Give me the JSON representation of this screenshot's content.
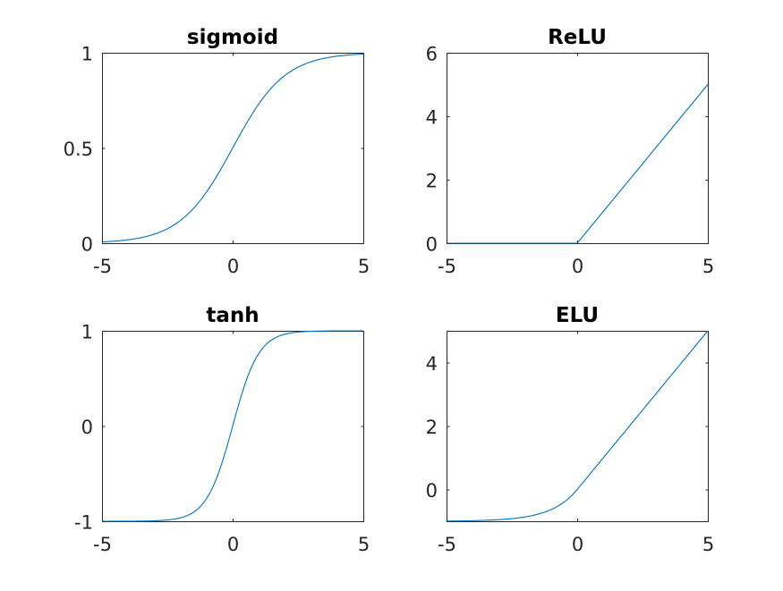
{
  "chart_data": [
    {
      "type": "line",
      "title": "sigmoid",
      "function": "sigmoid",
      "xlim": [
        -5,
        5
      ],
      "ylim": [
        0,
        1
      ],
      "xticks": [
        -5,
        0,
        5
      ],
      "xtick_labels": [
        "-5",
        "0",
        "5"
      ],
      "yticks": [
        0,
        0.5,
        1
      ],
      "ytick_labels": [
        "0",
        "0.5",
        "1"
      ],
      "x": [
        -5,
        -4,
        -3,
        -2,
        -1,
        0,
        1,
        2,
        3,
        4,
        5
      ],
      "y": [
        0.0067,
        0.018,
        0.047,
        0.119,
        0.269,
        0.5,
        0.731,
        0.881,
        0.953,
        0.982,
        0.9933
      ],
      "color": "#0072BD"
    },
    {
      "type": "line",
      "title": "ReLU",
      "function": "relu",
      "xlim": [
        -5,
        5
      ],
      "ylim": [
        0,
        6
      ],
      "xticks": [
        -5,
        0,
        5
      ],
      "xtick_labels": [
        "-5",
        "0",
        "5"
      ],
      "yticks": [
        0,
        2,
        4,
        6
      ],
      "ytick_labels": [
        "0",
        "2",
        "4",
        "6"
      ],
      "x": [
        -5,
        0,
        5
      ],
      "y": [
        0,
        0,
        5
      ],
      "color": "#0072BD"
    },
    {
      "type": "line",
      "title": "tanh",
      "function": "tanh",
      "xlim": [
        -5,
        5
      ],
      "ylim": [
        -1,
        1
      ],
      "xticks": [
        -5,
        0,
        5
      ],
      "xtick_labels": [
        "-5",
        "0",
        "5"
      ],
      "yticks": [
        -1,
        0,
        1
      ],
      "ytick_labels": [
        "-1",
        "0",
        "1"
      ],
      "x": [
        -5,
        -4,
        -3,
        -2,
        -1,
        0,
        1,
        2,
        3,
        4,
        5
      ],
      "y": [
        -0.9999,
        -0.9993,
        -0.995,
        -0.964,
        -0.762,
        0,
        0.762,
        0.964,
        0.995,
        0.9993,
        0.9999
      ],
      "color": "#0072BD"
    },
    {
      "type": "line",
      "title": "ELU",
      "function": "elu",
      "xlim": [
        -5,
        5
      ],
      "ylim": [
        -1,
        5
      ],
      "xticks": [
        -5,
        0,
        5
      ],
      "xtick_labels": [
        "-5",
        "0",
        "5"
      ],
      "yticks": [
        0,
        2,
        4
      ],
      "ytick_labels": [
        "0",
        "2",
        "4"
      ],
      "x": [
        -5,
        -4,
        -3,
        -2,
        -1,
        0,
        1,
        2,
        3,
        4,
        5
      ],
      "y": [
        -0.993,
        -0.982,
        -0.95,
        -0.865,
        -0.632,
        0,
        1,
        2,
        3,
        4,
        5
      ],
      "color": "#0072BD"
    }
  ]
}
